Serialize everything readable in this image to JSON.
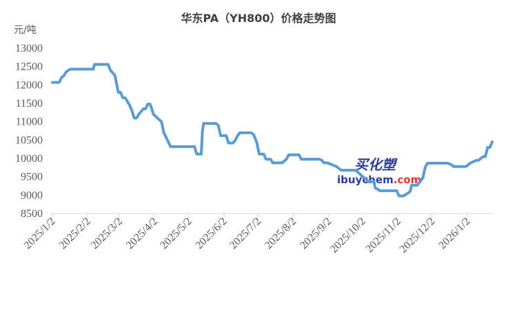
{
  "chart_data": {
    "type": "line",
    "title": "华东PA（YH800）价格走势图",
    "ylabel": "元/吨",
    "xlabel": "",
    "ylim": [
      8500,
      13000
    ],
    "yticks": [
      8500,
      9000,
      9500,
      10000,
      10500,
      11000,
      11500,
      12000,
      12500,
      13000
    ],
    "xticks": [
      "2025/1/2",
      "2025/2/2",
      "2025/3/2",
      "2025/4/2",
      "2025/5/2",
      "2025/6/2",
      "2025/7/2",
      "2025/8/2",
      "2025/9/2",
      "2025/10/2",
      "2025/11/2",
      "2025/12/2",
      "2026/1/2"
    ],
    "grid": false,
    "legend": "none",
    "line_color": "#5b9bd5",
    "series": [
      {
        "x": [
          "2025/1/2",
          "2025/1/8",
          "2025/1/10",
          "2025/1/12",
          "2025/1/14",
          "2025/1/16",
          "2025/1/18",
          "2025/1/30",
          "2025/2/5",
          "2025/2/7",
          "2025/2/8",
          "2025/2/20",
          "2025/2/22",
          "2025/2/24",
          "2025/2/26",
          "2025/2/28",
          "2025/3/1",
          "2025/3/3",
          "2025/3/5",
          "2025/3/7",
          "2025/3/9",
          "2025/3/11",
          "2025/3/13",
          "2025/3/15",
          "2025/3/17",
          "2025/3/19",
          "2025/3/23",
          "2025/3/25",
          "2025/3/27",
          "2025/3/29",
          "2025/4/1",
          "2025/4/8",
          "2025/4/10",
          "2025/4/12",
          "2025/4/16",
          "2025/4/18",
          "2025/4/20",
          "2025/4/22",
          "2025/4/24",
          "2025/5/7",
          "2025/5/9",
          "2025/5/13",
          "2025/5/14",
          "2025/5/15",
          "2025/5/26",
          "2025/5/28",
          "2025/5/30",
          "2025/6/4",
          "2025/6/6",
          "2025/6/10",
          "2025/6/12",
          "2025/6/14",
          "2025/6/16",
          "2025/6/18",
          "2025/6/26",
          "2025/6/28",
          "2025/6/30",
          "2025/7/1",
          "2025/7/3",
          "2025/7/7",
          "2025/7/9",
          "2025/7/13",
          "2025/7/15",
          "2025/7/23",
          "2025/7/27",
          "2025/7/29",
          "2025/8/7",
          "2025/8/9",
          "2025/8/25",
          "2025/8/27",
          "2025/8/29",
          "2025/9/1",
          "2025/9/9",
          "2025/9/13",
          "2025/9/15",
          "2025/9/26",
          "2025/9/28",
          "2025/10/7",
          "2025/10/12",
          "2025/10/13",
          "2025/10/16",
          "2025/10/17",
          "2025/10/19",
          "2025/11/1",
          "2025/11/3",
          "2025/11/7",
          "2025/11/8",
          "2025/11/9",
          "2025/11/12",
          "2025/11/13",
          "2025/11/14",
          "2025/11/19",
          "2025/11/21",
          "2025/11/24",
          "2025/11/26",
          "2025/11/28",
          "2025/12/16",
          "2025/12/19",
          "2025/12/21",
          "2026/1/1",
          "2026/1/3",
          "2026/1/5",
          "2026/1/10",
          "2026/1/12",
          "2026/1/16",
          "2026/1/18",
          "2026/1/20",
          "2026/1/22",
          "2026/1/24"
        ],
        "values": [
          12070,
          12070,
          12200,
          12250,
          12350,
          12400,
          12430,
          12430,
          12430,
          12430,
          12560,
          12560,
          12400,
          12330,
          12260,
          11950,
          11800,
          11800,
          11650,
          11650,
          11550,
          11450,
          11300,
          11100,
          11100,
          11200,
          11350,
          11350,
          11480,
          11480,
          11200,
          11000,
          10700,
          10580,
          10320,
          10320,
          10320,
          10320,
          10320,
          10320,
          10120,
          10120,
          10730,
          10950,
          10950,
          10900,
          10620,
          10620,
          10420,
          10420,
          10500,
          10620,
          10700,
          10700,
          10700,
          10650,
          10500,
          10420,
          10120,
          10120,
          9980,
          9980,
          9880,
          9880,
          9980,
          10100,
          10100,
          9980,
          9980,
          9950,
          9880,
          9880,
          9780,
          9680,
          9680,
          9680,
          9620,
          9370,
          9370,
          9200,
          9150,
          9120,
          9120,
          9120,
          8980,
          8980,
          9000,
          9020,
          9080,
          9120,
          9270,
          9270,
          9350,
          9470,
          9750,
          9870,
          9870,
          9830,
          9780,
          9780,
          9830,
          9880,
          9950,
          9950,
          10050,
          10050,
          10300,
          10300,
          10450
        ]
      }
    ],
    "watermark": {
      "cn": "买化塑",
      "en": "ibuychem",
      "com": ".com"
    }
  }
}
